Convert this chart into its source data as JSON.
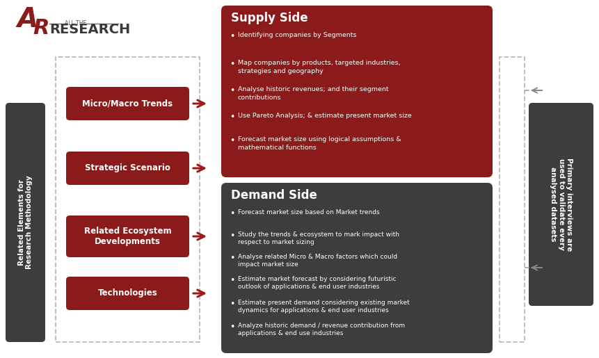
{
  "bg_color": "#ffffff",
  "dark_gray": "#3d3d3d",
  "red": "#8B1A1A",
  "arrow_red": "#9B1C1C",
  "left_col_label": "Related Elements for\nResearch Methodology",
  "right_col_label": "Primary interviews are\nused to validate every\nanalysed datasets",
  "left_boxes": [
    "Micro/Macro Trends",
    "Strategic Scenario",
    "Related Ecosystem\nDevelopments",
    "Technologies"
  ],
  "supply_title": "Supply Side",
  "supply_bullets": [
    "Identifying companies by Segments",
    "Map companies by products, targeted industries,\nstrategies and geography",
    "Analyse historic revenues; and their segment\ncontributions",
    "Use Pareto Analysis; & estimate present market size",
    "Forecast market size using logical assumptions &\nmathematical functions"
  ],
  "demand_title": "Demand Side",
  "demand_bullets": [
    "Forecast market size based on Market trends",
    "Study the trends & ecosystem to mark impact with\nrespect to market sizing",
    "Analyse related Micro & Macro factors which could\nimpact market size",
    "Estimate market forecast by considering futuristic\noutlook of applications & end user industries",
    "Estimate present demand considering existing market\ndynamics for applications & end user industries",
    "Analyze historic demand / revenue contribution from\napplications & end use industries"
  ],
  "fig_w": 8.61,
  "fig_h": 5.15,
  "dpi": 100
}
